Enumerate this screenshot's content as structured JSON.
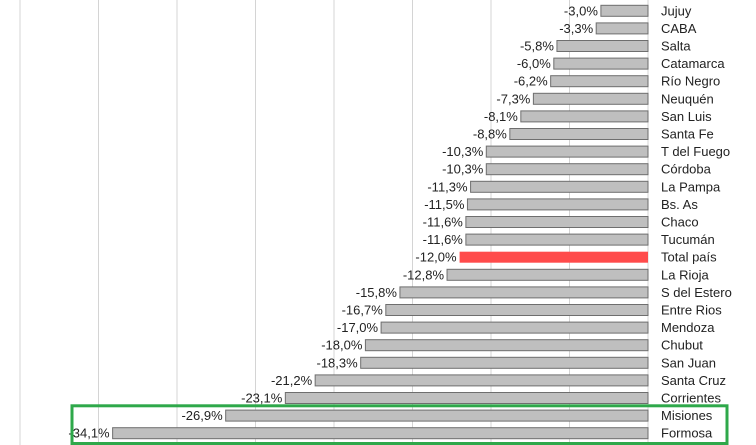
{
  "chart_data": {
    "type": "bar",
    "orientation": "horizontal",
    "categories": [
      "Jujuy",
      "CABA",
      "Salta",
      "Catamarca",
      "Río Negro",
      "Neuquén",
      "San Luis",
      "Santa Fe",
      "T del Fuego",
      "Córdoba",
      "La Pampa",
      "Bs. As",
      "Chaco",
      "Tucumán",
      "Total país",
      "La Rioja",
      "S del Estero",
      "Entre Rios",
      "Mendoza",
      "Chubut",
      "San Juan",
      "Santa Cruz",
      "Corrientes",
      "Misiones",
      "Formosa"
    ],
    "values": [
      -3.0,
      -3.3,
      -5.8,
      -6.0,
      -6.2,
      -7.3,
      -8.1,
      -8.8,
      -10.3,
      -10.3,
      -11.3,
      -11.5,
      -11.6,
      -11.6,
      -12.0,
      -12.8,
      -15.8,
      -16.7,
      -17.0,
      -18.0,
      -18.3,
      -21.2,
      -23.1,
      -26.9,
      -34.1
    ],
    "value_labels": [
      "-3,0%",
      "-3,3%",
      "-5,8%",
      "-6,0%",
      "-6,2%",
      "-7,3%",
      "-8,1%",
      "-8,8%",
      "-10,3%",
      "-10,3%",
      "-11,3%",
      "-11,5%",
      "-11,6%",
      "-11,6%",
      "-12,0%",
      "-12,8%",
      "-15,8%",
      "-16,7%",
      "-17,0%",
      "-18,0%",
      "-18,3%",
      "-21,2%",
      "-23,1%",
      "-26,9%",
      "-34,1%"
    ],
    "highlight_category": "Total país",
    "boxed_categories": [
      "Misiones",
      "Formosa"
    ],
    "xlim": [
      -40,
      0
    ],
    "grid": true,
    "colors": {
      "bar": "#bfbfbf",
      "bar_border": "#6e6e6e",
      "highlight": "#ff4b4b",
      "box": "#2ea84a",
      "grid": "#d4d4d4"
    }
  }
}
